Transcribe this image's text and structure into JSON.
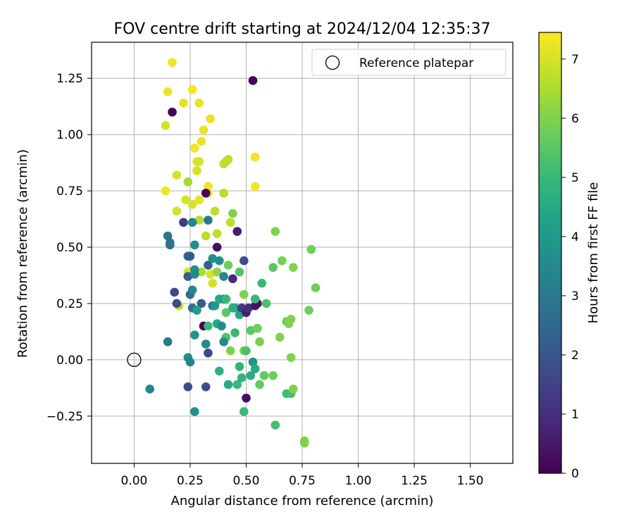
{
  "chart_data": {
    "type": "scatter",
    "title": "FOV centre drift starting at 2024/12/04 12:35:37",
    "xlabel": "Angular distance from reference (arcmin)",
    "ylabel": "Rotation from reference (arcmin)",
    "xlim": [
      -0.19,
      1.69
    ],
    "ylim": [
      -0.46,
      1.41
    ],
    "xticks": [
      0.0,
      0.25,
      0.5,
      0.75,
      1.0,
      1.25,
      1.5
    ],
    "xtick_labels": [
      "0.00",
      "0.25",
      "0.50",
      "0.75",
      "1.00",
      "1.25",
      "1.50"
    ],
    "yticks": [
      -0.25,
      0.0,
      0.25,
      0.5,
      0.75,
      1.0,
      1.25
    ],
    "ytick_labels": [
      "−0.25",
      "0.00",
      "0.25",
      "0.50",
      "0.75",
      "1.00",
      "1.25"
    ],
    "grid": true,
    "legend": {
      "placement": "upper-right",
      "label": "Reference platepar",
      "marker": "hollow-circle"
    },
    "reference_point": {
      "x": 0.0,
      "y": 0.0
    },
    "colorbar": {
      "label": "Hours from first FF file",
      "colormap": "viridis",
      "range": [
        0,
        7.45
      ],
      "ticks": [
        0,
        1,
        2,
        3,
        4,
        5,
        6,
        7
      ],
      "tick_labels": [
        "0",
        "1",
        "2",
        "3",
        "4",
        "5",
        "6",
        "7"
      ],
      "colors": [
        "#440154",
        "#482878",
        "#3e4989",
        "#31688e",
        "#26828e",
        "#1f9e89",
        "#35b779",
        "#6ece58",
        "#b5de2b",
        "#fde725"
      ]
    },
    "points": [
      {
        "x": 0.17,
        "y": 1.32,
        "t": 7.3
      },
      {
        "x": 0.26,
        "y": 1.2,
        "t": 7.3
      },
      {
        "x": 0.15,
        "y": 1.19,
        "t": 7.2
      },
      {
        "x": 0.22,
        "y": 1.14,
        "t": 7.2
      },
      {
        "x": 0.29,
        "y": 1.14,
        "t": 7.2
      },
      {
        "x": 0.34,
        "y": 1.07,
        "t": 7.2
      },
      {
        "x": 0.14,
        "y": 1.04,
        "t": 7.0
      },
      {
        "x": 0.31,
        "y": 1.02,
        "t": 7.2
      },
      {
        "x": 0.3,
        "y": 0.97,
        "t": 7.2
      },
      {
        "x": 0.27,
        "y": 0.94,
        "t": 7.3
      },
      {
        "x": 0.28,
        "y": 0.88,
        "t": 7.1
      },
      {
        "x": 0.29,
        "y": 0.88,
        "t": 7.0
      },
      {
        "x": 0.28,
        "y": 0.84,
        "t": 7.0
      },
      {
        "x": 0.19,
        "y": 0.82,
        "t": 7.0
      },
      {
        "x": 0.23,
        "y": 0.71,
        "t": 7.0
      },
      {
        "x": 0.26,
        "y": 0.69,
        "t": 7.0
      },
      {
        "x": 0.19,
        "y": 0.66,
        "t": 7.0
      },
      {
        "x": 0.14,
        "y": 0.75,
        "t": 7.3
      },
      {
        "x": 0.33,
        "y": 0.77,
        "t": 7.3
      },
      {
        "x": 0.33,
        "y": 0.74,
        "t": 7.3
      },
      {
        "x": 0.54,
        "y": 0.9,
        "t": 7.3
      },
      {
        "x": 0.54,
        "y": 0.77,
        "t": 7.3
      },
      {
        "x": 0.29,
        "y": 0.71,
        "t": 7.2
      },
      {
        "x": 0.4,
        "y": 0.87,
        "t": 6.7
      },
      {
        "x": 0.41,
        "y": 0.88,
        "t": 6.7
      },
      {
        "x": 0.42,
        "y": 0.89,
        "t": 6.7
      },
      {
        "x": 0.4,
        "y": 0.74,
        "t": 6.6
      },
      {
        "x": 0.24,
        "y": 0.79,
        "t": 6.4
      },
      {
        "x": 0.24,
        "y": 0.39,
        "t": 7.0
      },
      {
        "x": 0.2,
        "y": 0.24,
        "t": 6.8
      },
      {
        "x": 0.35,
        "y": 0.34,
        "t": 7.0
      },
      {
        "x": 0.34,
        "y": 0.38,
        "t": 7.0
      },
      {
        "x": 0.36,
        "y": 0.66,
        "t": 6.7
      },
      {
        "x": 0.29,
        "y": 0.62,
        "t": 6.6
      },
      {
        "x": 0.32,
        "y": 0.55,
        "t": 6.7
      },
      {
        "x": 0.37,
        "y": 0.56,
        "t": 6.7
      },
      {
        "x": 0.43,
        "y": 0.61,
        "t": 6.7
      },
      {
        "x": 0.3,
        "y": 0.39,
        "t": 6.5
      },
      {
        "x": 0.44,
        "y": 0.65,
        "t": 6.0
      },
      {
        "x": 0.37,
        "y": 0.39,
        "t": 6.2
      },
      {
        "x": 0.17,
        "y": 1.1,
        "t": 0.0
      },
      {
        "x": 0.53,
        "y": 1.24,
        "t": 0.0
      },
      {
        "x": 0.32,
        "y": 0.74,
        "t": 0.0
      },
      {
        "x": 0.46,
        "y": 0.57,
        "t": 0.6
      },
      {
        "x": 0.37,
        "y": 0.5,
        "t": 0.3
      },
      {
        "x": 0.22,
        "y": 0.61,
        "t": 1.3
      },
      {
        "x": 0.33,
        "y": 0.62,
        "t": 3.0
      },
      {
        "x": 0.26,
        "y": 0.61,
        "t": 3.4
      },
      {
        "x": 0.15,
        "y": 0.55,
        "t": 3.0
      },
      {
        "x": 0.16,
        "y": 0.52,
        "t": 2.8
      },
      {
        "x": 0.16,
        "y": 0.51,
        "t": 2.8
      },
      {
        "x": 0.27,
        "y": 0.51,
        "t": 3.6
      },
      {
        "x": 0.24,
        "y": 0.46,
        "t": 2.3
      },
      {
        "x": 0.25,
        "y": 0.46,
        "t": 2.1
      },
      {
        "x": 0.49,
        "y": 0.44,
        "t": 1.8
      },
      {
        "x": 0.24,
        "y": 0.37,
        "t": 2.2
      },
      {
        "x": 0.27,
        "y": 0.4,
        "t": 3.7
      },
      {
        "x": 0.27,
        "y": 0.38,
        "t": 3.5
      },
      {
        "x": 0.33,
        "y": 0.42,
        "t": 2.3
      },
      {
        "x": 0.35,
        "y": 0.45,
        "t": 3.7
      },
      {
        "x": 0.38,
        "y": 0.44,
        "t": 3.7
      },
      {
        "x": 0.42,
        "y": 0.42,
        "t": 5.8
      },
      {
        "x": 0.4,
        "y": 0.37,
        "t": 3.5
      },
      {
        "x": 0.44,
        "y": 0.36,
        "t": 0.9
      },
      {
        "x": 0.47,
        "y": 0.39,
        "t": 5.4
      },
      {
        "x": 0.18,
        "y": 0.3,
        "t": 1.6
      },
      {
        "x": 0.19,
        "y": 0.25,
        "t": 1.7
      },
      {
        "x": 0.25,
        "y": 0.29,
        "t": 2.6
      },
      {
        "x": 0.26,
        "y": 0.31,
        "t": 3.5
      },
      {
        "x": 0.3,
        "y": 0.25,
        "t": 2.2
      },
      {
        "x": 0.26,
        "y": 0.23,
        "t": 2.8
      },
      {
        "x": 0.28,
        "y": 0.22,
        "t": 4.1
      },
      {
        "x": 0.35,
        "y": 0.24,
        "t": 2.8
      },
      {
        "x": 0.38,
        "y": 0.27,
        "t": 4.5
      },
      {
        "x": 0.4,
        "y": 0.27,
        "t": 4.1
      },
      {
        "x": 0.41,
        "y": 0.27,
        "t": 5.0
      },
      {
        "x": 0.41,
        "y": 0.21,
        "t": 5.5
      },
      {
        "x": 0.45,
        "y": 0.23,
        "t": 4.0
      },
      {
        "x": 0.47,
        "y": 0.2,
        "t": 4.5
      },
      {
        "x": 0.48,
        "y": 0.23,
        "t": 1.3
      },
      {
        "x": 0.5,
        "y": 0.21,
        "t": 0.6
      },
      {
        "x": 0.51,
        "y": 0.23,
        "t": 1.0
      },
      {
        "x": 0.49,
        "y": 0.29,
        "t": 6.0
      },
      {
        "x": 0.54,
        "y": 0.24,
        "t": 0.5
      },
      {
        "x": 0.55,
        "y": 0.25,
        "t": 0.3
      },
      {
        "x": 0.54,
        "y": 0.27,
        "t": 5.0
      },
      {
        "x": 0.57,
        "y": 0.34,
        "t": 5.0
      },
      {
        "x": 0.59,
        "y": 0.25,
        "t": 5.3
      },
      {
        "x": 0.62,
        "y": 0.41,
        "t": 5.5
      },
      {
        "x": 0.63,
        "y": 0.57,
        "t": 6.0
      },
      {
        "x": 0.66,
        "y": 0.44,
        "t": 5.9
      },
      {
        "x": 0.71,
        "y": 0.41,
        "t": 6.0
      },
      {
        "x": 0.79,
        "y": 0.49,
        "t": 5.8
      },
      {
        "x": 0.81,
        "y": 0.32,
        "t": 5.8
      },
      {
        "x": 0.78,
        "y": 0.22,
        "t": 5.8
      },
      {
        "x": 0.65,
        "y": 0.1,
        "t": 6.0
      },
      {
        "x": 0.68,
        "y": 0.17,
        "t": 5.8
      },
      {
        "x": 0.7,
        "y": 0.18,
        "t": 6.0
      },
      {
        "x": 0.69,
        "y": 0.16,
        "t": 6.0
      },
      {
        "x": 0.7,
        "y": 0.01,
        "t": 6.0
      },
      {
        "x": 0.31,
        "y": 0.15,
        "t": 0.0
      },
      {
        "x": 0.33,
        "y": 0.15,
        "t": 5.0
      },
      {
        "x": 0.37,
        "y": 0.16,
        "t": 4.4
      },
      {
        "x": 0.39,
        "y": 0.15,
        "t": 3.6
      },
      {
        "x": 0.41,
        "y": 0.1,
        "t": 5.4
      },
      {
        "x": 0.4,
        "y": 0.08,
        "t": 3.6
      },
      {
        "x": 0.45,
        "y": 0.12,
        "t": 5.0
      },
      {
        "x": 0.43,
        "y": 0.04,
        "t": 6.0
      },
      {
        "x": 0.27,
        "y": 0.11,
        "t": 3.8
      },
      {
        "x": 0.32,
        "y": 0.07,
        "t": 3.5
      },
      {
        "x": 0.33,
        "y": 0.03,
        "t": 1.6
      },
      {
        "x": 0.15,
        "y": 0.08,
        "t": 3.0
      },
      {
        "x": 0.24,
        "y": 0.01,
        "t": 3.7
      },
      {
        "x": 0.25,
        "y": -0.01,
        "t": 3.4
      },
      {
        "x": 0.49,
        "y": 0.04,
        "t": 6.0
      },
      {
        "x": 0.5,
        "y": 0.04,
        "t": 5.3
      },
      {
        "x": 0.52,
        "y": 0.13,
        "t": 5.5
      },
      {
        "x": 0.55,
        "y": 0.14,
        "t": 5.8
      },
      {
        "x": 0.56,
        "y": 0.08,
        "t": 5.9
      },
      {
        "x": 0.47,
        "y": -0.03,
        "t": 4.8
      },
      {
        "x": 0.53,
        "y": -0.01,
        "t": 3.8
      },
      {
        "x": 0.54,
        "y": -0.04,
        "t": 4.5
      },
      {
        "x": 0.52,
        "y": -0.07,
        "t": 4.6
      },
      {
        "x": 0.48,
        "y": -0.08,
        "t": 4.9
      },
      {
        "x": 0.46,
        "y": -0.11,
        "t": 5.0
      },
      {
        "x": 0.42,
        "y": -0.11,
        "t": 4.6
      },
      {
        "x": 0.38,
        "y": -0.05,
        "t": 4.7
      },
      {
        "x": 0.56,
        "y": -0.11,
        "t": 5.6
      },
      {
        "x": 0.58,
        "y": -0.07,
        "t": 5.6
      },
      {
        "x": 0.62,
        "y": -0.07,
        "t": 5.8
      },
      {
        "x": 0.5,
        "y": -0.17,
        "t": 0.3
      },
      {
        "x": 0.49,
        "y": -0.23,
        "t": 5.0
      },
      {
        "x": 0.07,
        "y": -0.13,
        "t": 3.4
      },
      {
        "x": 0.24,
        "y": -0.12,
        "t": 1.7
      },
      {
        "x": 0.32,
        "y": -0.12,
        "t": 1.8
      },
      {
        "x": 0.27,
        "y": -0.23,
        "t": 3.7
      },
      {
        "x": 0.68,
        "y": -0.15,
        "t": 5.2
      },
      {
        "x": 0.7,
        "y": -0.15,
        "t": 5.2
      },
      {
        "x": 0.71,
        "y": -0.13,
        "t": 6.0
      },
      {
        "x": 0.63,
        "y": -0.29,
        "t": 5.2
      },
      {
        "x": 0.76,
        "y": -0.36,
        "t": 6.0
      },
      {
        "x": 0.76,
        "y": -0.37,
        "t": 6.0
      },
      {
        "x": 0.44,
        "y": 0.23,
        "t": 4.6
      },
      {
        "x": 0.36,
        "y": 0.24,
        "t": 4.0
      }
    ]
  }
}
